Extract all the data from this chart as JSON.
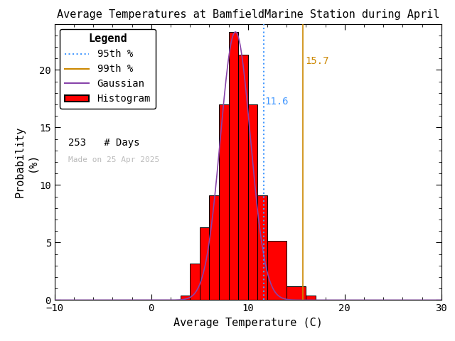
{
  "title": "Average Temperatures at BamfieldMarine Station during April",
  "xlabel": "Average Temperature (C)",
  "ylabel": "Probability\n(%)",
  "xlim": [
    -10,
    30
  ],
  "ylim": [
    0,
    24
  ],
  "bin_left_edges": [
    3,
    4,
    5,
    6,
    7,
    8,
    9,
    10,
    11,
    12,
    14,
    16
  ],
  "bin_widths": [
    1,
    1,
    1,
    1,
    1,
    1,
    1,
    1,
    1,
    2,
    2,
    1
  ],
  "bin_heights": [
    0.39,
    3.16,
    6.32,
    9.09,
    17.0,
    23.32,
    21.34,
    17.0,
    9.09,
    5.14,
    1.19,
    0.39
  ],
  "hist_color": "#FF0000",
  "hist_edge_color": "#000000",
  "gauss_color": "#8844AA",
  "pct95_color": "#4499FF",
  "pct99_color": "#CC8800",
  "pct95_val": 11.6,
  "pct99_val": 15.7,
  "pct95_label": "11.6",
  "pct99_label": "15.7",
  "gauss_mean": 8.7,
  "gauss_std": 1.55,
  "gauss_scale": 23.3,
  "n_days": 253,
  "made_on": "Made on 25 Apr 2025",
  "legend_title": "Legend",
  "background_color": "#FFFFFF",
  "title_fontsize": 11,
  "axis_fontsize": 11,
  "legend_fontsize": 10,
  "tick_fontsize": 10,
  "yticks": [
    0,
    5,
    10,
    15,
    20
  ],
  "xticks": [
    -10,
    0,
    10,
    20,
    30
  ]
}
